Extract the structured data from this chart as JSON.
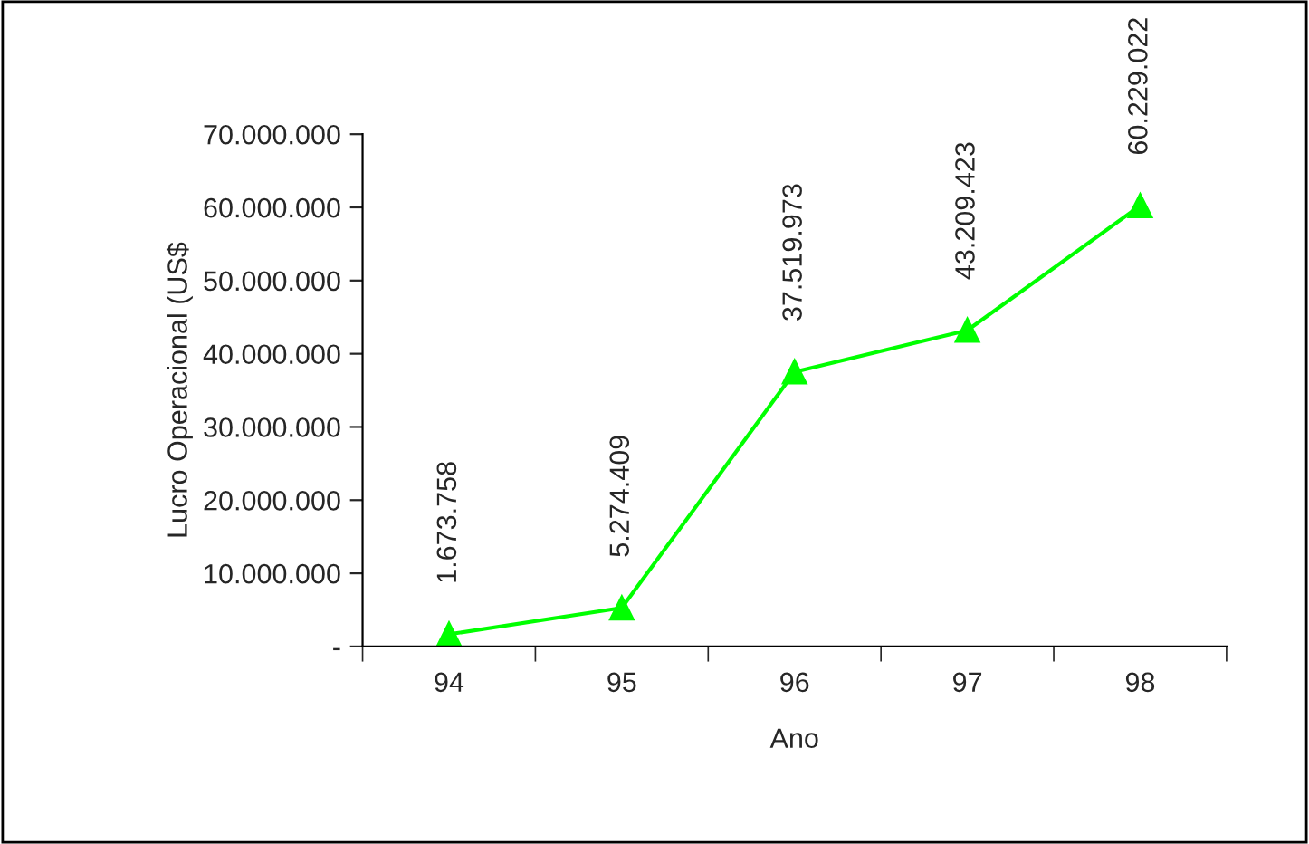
{
  "chart_data": {
    "type": "line",
    "xlabel": "Ano",
    "ylabel": "Lucro Operacional (US$",
    "categories": [
      "94",
      "95",
      "96",
      "97",
      "98"
    ],
    "series": [
      {
        "color": "#00ff00",
        "values": [
          1673758,
          5274409,
          37519973,
          43209423,
          60229022
        ],
        "value_labels": [
          "1.673.758",
          "5.274.409",
          "37.519.973",
          "43.209.423",
          "60.229.022"
        ]
      }
    ],
    "ylim": [
      0,
      70000000
    ],
    "yticks": [
      {
        "value": 0,
        "label": "-"
      },
      {
        "value": 10000000,
        "label": "10.000.000"
      },
      {
        "value": 20000000,
        "label": "20.000.000"
      },
      {
        "value": 30000000,
        "label": "30.000.000"
      },
      {
        "value": 40000000,
        "label": "40.000.000"
      },
      {
        "value": 50000000,
        "label": "50.000.000"
      },
      {
        "value": 60000000,
        "label": "60.000.000"
      },
      {
        "value": 70000000,
        "label": "70.000.000"
      }
    ],
    "marker": "triangle",
    "line_style": "solid",
    "grid": false,
    "legend": false
  }
}
